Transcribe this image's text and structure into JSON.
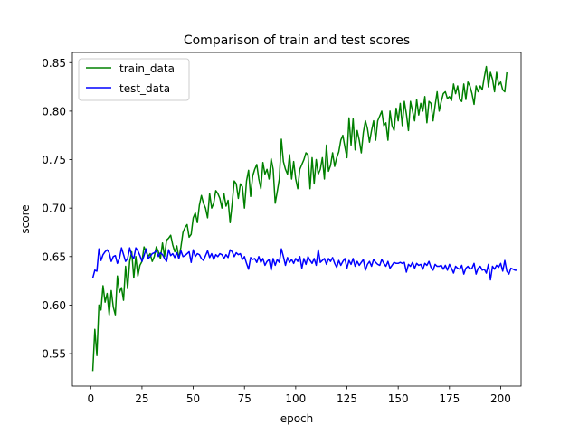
{
  "chart_data": {
    "type": "line",
    "title": "Comparison of train and test scores",
    "xlabel": "epoch",
    "ylabel": "score",
    "xlim": [
      -8.95,
      209.95
    ],
    "ylim": [
      0.5165,
      0.8605
    ],
    "xticks": [
      0,
      25,
      50,
      75,
      100,
      125,
      150,
      175,
      200
    ],
    "yticks": [
      0.55,
      0.6,
      0.65,
      0.7,
      0.75,
      0.8,
      0.85
    ],
    "ytick_labels": [
      "0.55",
      "0.60",
      "0.65",
      "0.70",
      "0.75",
      "0.80",
      "0.85"
    ],
    "grid": false,
    "legend_placement": "top-left",
    "series": [
      {
        "name": "train_data",
        "color": "#008000",
        "x_start": 1,
        "x_step": 1,
        "values": [
          0.532,
          0.575,
          0.548,
          0.6,
          0.595,
          0.62,
          0.603,
          0.612,
          0.59,
          0.615,
          0.598,
          0.59,
          0.63,
          0.613,
          0.618,
          0.605,
          0.64,
          0.617,
          0.645,
          0.655,
          0.628,
          0.65,
          0.63,
          0.641,
          0.645,
          0.66,
          0.655,
          0.65,
          0.653,
          0.645,
          0.65,
          0.66,
          0.655,
          0.648,
          0.664,
          0.65,
          0.667,
          0.669,
          0.672,
          0.662,
          0.655,
          0.661,
          0.648,
          0.66,
          0.675,
          0.68,
          0.683,
          0.67,
          0.673,
          0.69,
          0.695,
          0.685,
          0.703,
          0.713,
          0.705,
          0.7,
          0.69,
          0.715,
          0.7,
          0.705,
          0.718,
          0.715,
          0.71,
          0.7,
          0.715,
          0.702,
          0.708,
          0.685,
          0.705,
          0.728,
          0.725,
          0.71,
          0.725,
          0.722,
          0.7,
          0.728,
          0.739,
          0.712,
          0.733,
          0.74,
          0.745,
          0.73,
          0.72,
          0.747,
          0.735,
          0.74,
          0.73,
          0.751,
          0.74,
          0.705,
          0.717,
          0.73,
          0.771,
          0.748,
          0.74,
          0.735,
          0.755,
          0.73,
          0.748,
          0.73,
          0.72,
          0.74,
          0.745,
          0.75,
          0.757,
          0.755,
          0.72,
          0.752,
          0.725,
          0.75,
          0.735,
          0.74,
          0.752,
          0.73,
          0.765,
          0.738,
          0.744,
          0.757,
          0.743,
          0.752,
          0.758,
          0.77,
          0.775,
          0.763,
          0.752,
          0.793,
          0.765,
          0.792,
          0.76,
          0.78,
          0.77,
          0.757,
          0.778,
          0.79,
          0.782,
          0.768,
          0.78,
          0.79,
          0.77,
          0.79,
          0.795,
          0.8,
          0.785,
          0.788,
          0.77,
          0.8,
          0.785,
          0.78,
          0.803,
          0.79,
          0.808,
          0.785,
          0.81,
          0.797,
          0.78,
          0.81,
          0.8,
          0.79,
          0.812,
          0.796,
          0.808,
          0.8,
          0.815,
          0.788,
          0.81,
          0.808,
          0.79,
          0.806,
          0.82,
          0.8,
          0.81,
          0.818,
          0.82,
          0.813,
          0.815,
          0.811,
          0.828,
          0.818,
          0.826,
          0.812,
          0.81,
          0.828,
          0.812,
          0.83,
          0.826,
          0.818,
          0.807,
          0.826,
          0.82,
          0.826,
          0.822,
          0.835,
          0.846,
          0.825,
          0.84,
          0.833,
          0.82,
          0.84,
          0.827,
          0.83,
          0.822,
          0.82,
          0.84
        ]
      },
      {
        "name": "test_data",
        "color": "#0000ff",
        "x_start": 1,
        "x_step": 1,
        "values": [
          0.628,
          0.636,
          0.635,
          0.658,
          0.646,
          0.652,
          0.655,
          0.657,
          0.654,
          0.645,
          0.65,
          0.651,
          0.643,
          0.648,
          0.659,
          0.652,
          0.645,
          0.648,
          0.659,
          0.651,
          0.648,
          0.659,
          0.656,
          0.651,
          0.645,
          0.651,
          0.658,
          0.648,
          0.65,
          0.653,
          0.654,
          0.656,
          0.65,
          0.654,
          0.652,
          0.648,
          0.645,
          0.657,
          0.651,
          0.653,
          0.649,
          0.654,
          0.648,
          0.656,
          0.65,
          0.651,
          0.653,
          0.655,
          0.644,
          0.657,
          0.65,
          0.653,
          0.652,
          0.648,
          0.646,
          0.651,
          0.656,
          0.649,
          0.653,
          0.647,
          0.652,
          0.65,
          0.653,
          0.652,
          0.648,
          0.652,
          0.649,
          0.657,
          0.655,
          0.65,
          0.654,
          0.652,
          0.653,
          0.647,
          0.65,
          0.643,
          0.637,
          0.649,
          0.647,
          0.648,
          0.644,
          0.65,
          0.644,
          0.648,
          0.641,
          0.645,
          0.647,
          0.636,
          0.648,
          0.641,
          0.647,
          0.644,
          0.658,
          0.65,
          0.641,
          0.649,
          0.644,
          0.647,
          0.643,
          0.648,
          0.645,
          0.65,
          0.638,
          0.648,
          0.642,
          0.65,
          0.646,
          0.643,
          0.648,
          0.641,
          0.657,
          0.644,
          0.646,
          0.648,
          0.642,
          0.648,
          0.645,
          0.649,
          0.643,
          0.639,
          0.646,
          0.641,
          0.645,
          0.648,
          0.638,
          0.646,
          0.642,
          0.648,
          0.64,
          0.645,
          0.641,
          0.644,
          0.647,
          0.636,
          0.642,
          0.645,
          0.64,
          0.647,
          0.644,
          0.642,
          0.641,
          0.647,
          0.643,
          0.64,
          0.645,
          0.638,
          0.641,
          0.644,
          0.643,
          0.643,
          0.644,
          0.643,
          0.644,
          0.634,
          0.642,
          0.64,
          0.644,
          0.638,
          0.643,
          0.641,
          0.642,
          0.637,
          0.643,
          0.641,
          0.645,
          0.639,
          0.636,
          0.642,
          0.64,
          0.64,
          0.641,
          0.637,
          0.641,
          0.636,
          0.642,
          0.638,
          0.633,
          0.64,
          0.638,
          0.637,
          0.641,
          0.632,
          0.638,
          0.64,
          0.637,
          0.638,
          0.643,
          0.632,
          0.638,
          0.64,
          0.636,
          0.637,
          0.633,
          0.642,
          0.626,
          0.64,
          0.637,
          0.641,
          0.639,
          0.643,
          0.635,
          0.646,
          0.635,
          0.632,
          0.638,
          0.637,
          0.636,
          0.636
        ]
      }
    ]
  }
}
